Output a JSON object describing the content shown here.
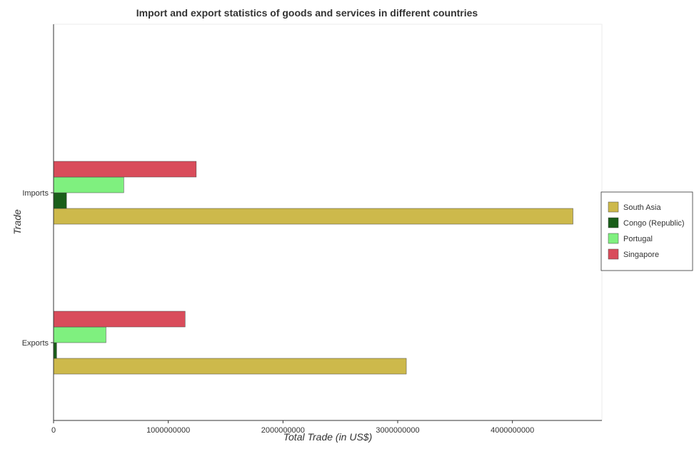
{
  "chart_data": {
    "type": "bar",
    "orientation": "horizontal",
    "title": "Import and export statistics of goods and services in different countries",
    "xlabel": "Total Trade (in US$)",
    "ylabel": "Trade",
    "categories": [
      "Exports",
      "Imports"
    ],
    "series": [
      {
        "name": "South Asia",
        "color": "#cdb94b",
        "values": [
          3075000000,
          4528000000
        ]
      },
      {
        "name": "Congo (Republic)",
        "color": "#1a5e1a",
        "values": [
          27000000,
          113000000
        ]
      },
      {
        "name": "Portugal",
        "color": "#7ff07f",
        "values": [
          457000000,
          612000000
        ]
      },
      {
        "name": "Singapore",
        "color": "#d94c5b",
        "values": [
          1147000000,
          1244000000
        ]
      }
    ],
    "xlim": [
      0,
      4780000000
    ],
    "xticks": [
      0,
      1000000000,
      2000000000,
      3000000000,
      4000000000
    ],
    "xtick_labels": [
      "0",
      "1000000000",
      "2000000000",
      "3000000000",
      "4000000000"
    ],
    "grid": false,
    "legend_position": "right"
  }
}
